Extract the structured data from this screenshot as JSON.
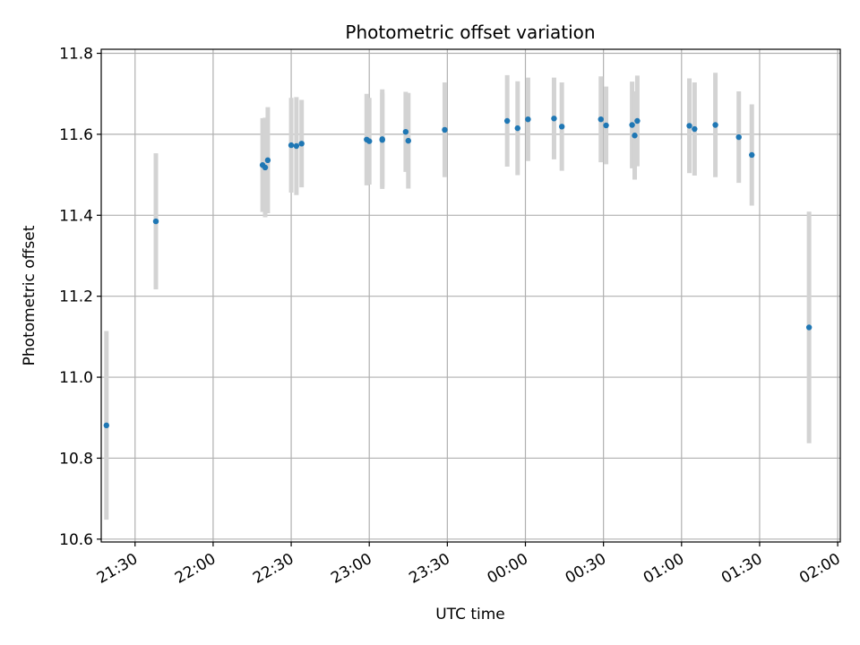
{
  "chart_data": {
    "type": "scatter",
    "title": "Photometric offset variation",
    "xlabel": "UTC time",
    "ylabel": "Photometric offset",
    "grid": true,
    "colors": {
      "points": "#1f77b4",
      "errorbars": "#d3d3d3"
    },
    "xlim": [
      "21:17",
      "02:01"
    ],
    "ylim": [
      10.593,
      11.81
    ],
    "x_ticks": [
      "21:30",
      "22:00",
      "22:30",
      "23:00",
      "23:30",
      "00:00",
      "00:30",
      "01:00",
      "01:30",
      "02:00"
    ],
    "y_ticks": [
      "10.6",
      "10.8",
      "11.0",
      "11.2",
      "11.4",
      "11.6",
      "11.8"
    ],
    "points": [
      {
        "x": "21:19",
        "y": 10.881,
        "err": 0.233
      },
      {
        "x": "21:38",
        "y": 11.385,
        "err": 0.168
      },
      {
        "x": "22:19",
        "y": 11.524,
        "err": 0.116
      },
      {
        "x": "22:20",
        "y": 11.518,
        "err": 0.123
      },
      {
        "x": "22:21",
        "y": 11.536,
        "err": 0.131
      },
      {
        "x": "22:30",
        "y": 11.573,
        "err": 0.117
      },
      {
        "x": "22:32",
        "y": 11.571,
        "err": 0.121
      },
      {
        "x": "22:34",
        "y": 11.577,
        "err": 0.108
      },
      {
        "x": "22:59",
        "y": 11.587,
        "err": 0.113
      },
      {
        "x": "23:00",
        "y": 11.583,
        "err": 0.107
      },
      {
        "x": "23:05",
        "y": 11.588,
        "err": 0.123
      },
      {
        "x": "23:05",
        "y": 11.586,
        "err": 0.116
      },
      {
        "x": "23:14",
        "y": 11.606,
        "err": 0.099
      },
      {
        "x": "23:15",
        "y": 11.584,
        "err": 0.118
      },
      {
        "x": "23:29",
        "y": 11.611,
        "err": 0.117
      },
      {
        "x": "23:53",
        "y": 11.633,
        "err": 0.113
      },
      {
        "x": "23:57",
        "y": 11.615,
        "err": 0.116
      },
      {
        "x": "00:01",
        "y": 11.637,
        "err": 0.103
      },
      {
        "x": "00:11",
        "y": 11.639,
        "err": 0.101
      },
      {
        "x": "00:14",
        "y": 11.619,
        "err": 0.109
      },
      {
        "x": "00:29",
        "y": 11.637,
        "err": 0.106
      },
      {
        "x": "00:31",
        "y": 11.622,
        "err": 0.096
      },
      {
        "x": "00:41",
        "y": 11.623,
        "err": 0.107
      },
      {
        "x": "00:42",
        "y": 11.597,
        "err": 0.109
      },
      {
        "x": "00:43",
        "y": 11.633,
        "err": 0.112
      },
      {
        "x": "01:03",
        "y": 11.621,
        "err": 0.117
      },
      {
        "x": "01:05",
        "y": 11.613,
        "err": 0.115
      },
      {
        "x": "01:13",
        "y": 11.623,
        "err": 0.129
      },
      {
        "x": "01:22",
        "y": 11.593,
        "err": 0.113
      },
      {
        "x": "01:27",
        "y": 11.549,
        "err": 0.125
      },
      {
        "x": "01:49",
        "y": 11.123,
        "err": 0.286
      }
    ]
  }
}
